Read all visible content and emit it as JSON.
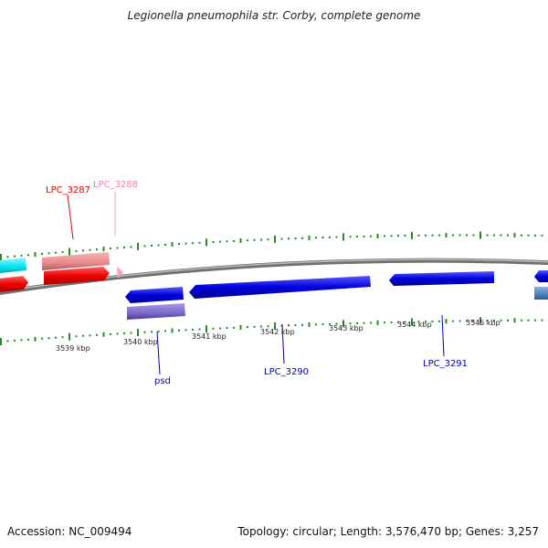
{
  "title": "Legionella pneumophila str. Corby, complete genome",
  "footer": {
    "accession": "Accession: NC_009494",
    "summary": "Topology: circular; Length: 3,576,470 bp; Genes: 3,257"
  },
  "tick_labels": [
    "3539 kbp",
    "3540 kbp",
    "3541 kbp",
    "3542 kbp",
    "3543 kbp",
    "3544 kbp",
    "3545 kbp"
  ],
  "gene_labels": [
    {
      "name": "LPC_3287",
      "color": "#e00000"
    },
    {
      "name": "LPC_3288",
      "color": "#f080b0"
    },
    {
      "name": "psd",
      "color": "#0000c0"
    },
    {
      "name": "LPC_3290",
      "color": "#0000c0"
    },
    {
      "name": "LPC_3291",
      "color": "#0000c0"
    }
  ],
  "colors": {
    "backbone": "#808080",
    "ticks": "#228b22",
    "forward_red": "#ee0000",
    "forward_salmon": "#e88a8a",
    "forward_pink": "#f4a0c8",
    "forward_cyan": "#00e5ee",
    "reverse_blue": "#0000dd",
    "reverse_purple": "#7b68c8",
    "reverse_steel": "#4f7fb8"
  }
}
